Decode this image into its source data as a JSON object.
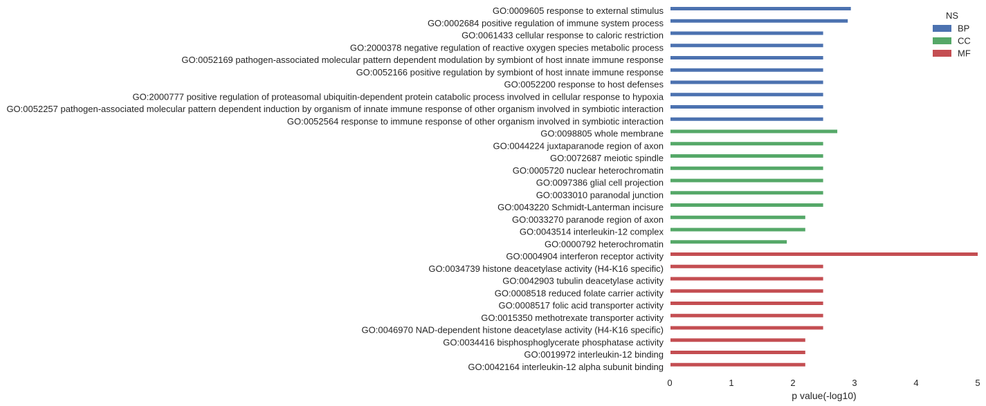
{
  "chart_data": {
    "type": "bar",
    "orientation": "horizontal",
    "title": "",
    "xlabel": "p value(-log10)",
    "ylabel": "",
    "xlim": [
      0,
      5
    ],
    "xticks": [
      0,
      1,
      2,
      3,
      4,
      5
    ],
    "grid": false,
    "legend": {
      "title": "NS",
      "placement": "top-right",
      "entries": [
        {
          "name": "BP",
          "color": "#4c72b0"
        },
        {
          "name": "CC",
          "color": "#55a868"
        },
        {
          "name": "MF",
          "color": "#c44e52"
        }
      ]
    },
    "bars": [
      {
        "label": "GO:0009605 response to external stimulus",
        "ns": "BP",
        "value": 2.94
      },
      {
        "label": "GO:0002684 positive regulation of immune system process",
        "ns": "BP",
        "value": 2.89
      },
      {
        "label": "GO:0061433 cellular response to caloric restriction",
        "ns": "BP",
        "value": 2.49
      },
      {
        "label": "GO:2000378 negative regulation of reactive oxygen species metabolic process",
        "ns": "BP",
        "value": 2.49
      },
      {
        "label": "GO:0052169 pathogen-associated molecular pattern dependent modulation by symbiont of host innate immune response",
        "ns": "BP",
        "value": 2.49
      },
      {
        "label": "GO:0052166 positive regulation by symbiont of host innate immune response",
        "ns": "BP",
        "value": 2.49
      },
      {
        "label": "GO:0052200 response to host defenses",
        "ns": "BP",
        "value": 2.49
      },
      {
        "label": "GO:2000777 positive regulation of proteasomal ubiquitin-dependent protein catabolic process involved in cellular response to hypoxia",
        "ns": "BP",
        "value": 2.49
      },
      {
        "label": "GO:0052257 pathogen-associated molecular pattern dependent induction by organism of innate immune response of other organism involved in symbiotic interaction",
        "ns": "BP",
        "value": 2.49
      },
      {
        "label": "GO:0052564 response to immune response of other organism involved in symbiotic interaction",
        "ns": "BP",
        "value": 2.49
      },
      {
        "label": "GO:0098805 whole membrane",
        "ns": "CC",
        "value": 2.72
      },
      {
        "label": "GO:0044224 juxtaparanode region of axon",
        "ns": "CC",
        "value": 2.49
      },
      {
        "label": "GO:0072687 meiotic spindle",
        "ns": "CC",
        "value": 2.49
      },
      {
        "label": "GO:0005720 nuclear heterochromatin",
        "ns": "CC",
        "value": 2.49
      },
      {
        "label": "GO:0097386 glial cell projection",
        "ns": "CC",
        "value": 2.49
      },
      {
        "label": "GO:0033010 paranodal junction",
        "ns": "CC",
        "value": 2.49
      },
      {
        "label": "GO:0043220 Schmidt-Lanterman incisure",
        "ns": "CC",
        "value": 2.49
      },
      {
        "label": "GO:0033270 paranode region of axon",
        "ns": "CC",
        "value": 2.2
      },
      {
        "label": "GO:0043514 interleukin-12 complex",
        "ns": "CC",
        "value": 2.2
      },
      {
        "label": "GO:0000792 heterochromatin",
        "ns": "CC",
        "value": 1.9
      },
      {
        "label": "GO:0004904 interferon receptor activity",
        "ns": "MF",
        "value": 5.0
      },
      {
        "label": "GO:0034739 histone deacetylase activity (H4-K16 specific)",
        "ns": "MF",
        "value": 2.49
      },
      {
        "label": "GO:0042903 tubulin deacetylase activity",
        "ns": "MF",
        "value": 2.49
      },
      {
        "label": "GO:0008518 reduced folate carrier activity",
        "ns": "MF",
        "value": 2.49
      },
      {
        "label": "GO:0008517 folic acid transporter activity",
        "ns": "MF",
        "value": 2.49
      },
      {
        "label": "GO:0015350 methotrexate transporter activity",
        "ns": "MF",
        "value": 2.49
      },
      {
        "label": "GO:0046970 NAD-dependent histone deacetylase activity (H4-K16 specific)",
        "ns": "MF",
        "value": 2.49
      },
      {
        "label": "GO:0034416 bisphosphoglycerate phosphatase activity",
        "ns": "MF",
        "value": 2.2
      },
      {
        "label": "GO:0019972 interleukin-12 binding",
        "ns": "MF",
        "value": 2.2
      },
      {
        "label": "GO:0042164 interleukin-12 alpha subunit binding",
        "ns": "MF",
        "value": 2.2
      }
    ]
  }
}
